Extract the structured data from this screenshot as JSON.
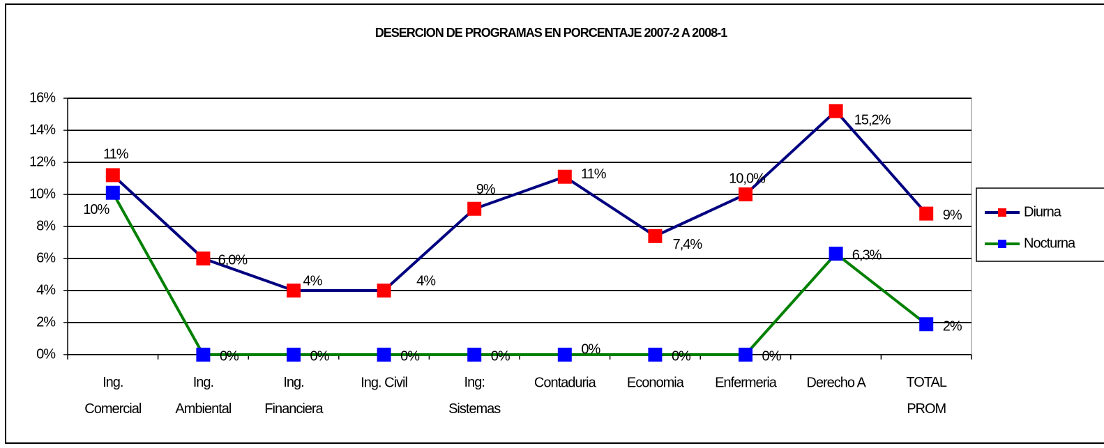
{
  "chart_data": {
    "type": "line",
    "title": "DESERCION DE PROGRAMAS EN PORCENTAJE 2007-2 A 2008-1",
    "categories": [
      "Ing.\nComercial",
      "Ing.\nAmbiental",
      "Ing.\nFinanciera",
      "Ing. Civil",
      "Ing:\nSistemas",
      "Contaduria",
      "Economia",
      "Enfermeria",
      "Derecho A",
      "TOTAL\nPROM"
    ],
    "series": [
      {
        "name": "Diurna",
        "color": "#000080",
        "marker_color": "#ff0000",
        "values": [
          11.2,
          6.0,
          4,
          4,
          9.1,
          11.1,
          7.4,
          10.0,
          15.2,
          8.8
        ],
        "value_labels": [
          "11%",
          "6,0%",
          "4%",
          "4%",
          "9%",
          "11%",
          "7,4%",
          "10,0%",
          "15,2%",
          "9%"
        ]
      },
      {
        "name": "Nocturna",
        "color": "#008000",
        "marker_color": "#0000ff",
        "values": [
          10.1,
          0,
          0,
          0,
          0,
          0,
          0,
          0,
          6.3,
          1.9
        ],
        "value_labels": [
          "10%",
          "0%",
          "0%",
          "0%",
          "0%",
          "0%",
          "0%",
          "0%",
          "6,3%",
          "2%"
        ]
      }
    ],
    "ylim": [
      0,
      16
    ],
    "yticks": [
      {
        "value": 0,
        "label": "0%"
      },
      {
        "value": 2,
        "label": "2%"
      },
      {
        "value": 4,
        "label": "4%"
      },
      {
        "value": 6,
        "label": "6%"
      },
      {
        "value": 8,
        "label": "8%"
      },
      {
        "value": 10,
        "label": "10%"
      },
      {
        "value": 12,
        "label": "12%"
      },
      {
        "value": 14,
        "label": "14%"
      },
      {
        "value": 16,
        "label": "16%"
      }
    ],
    "grid": true,
    "legend": "right"
  }
}
